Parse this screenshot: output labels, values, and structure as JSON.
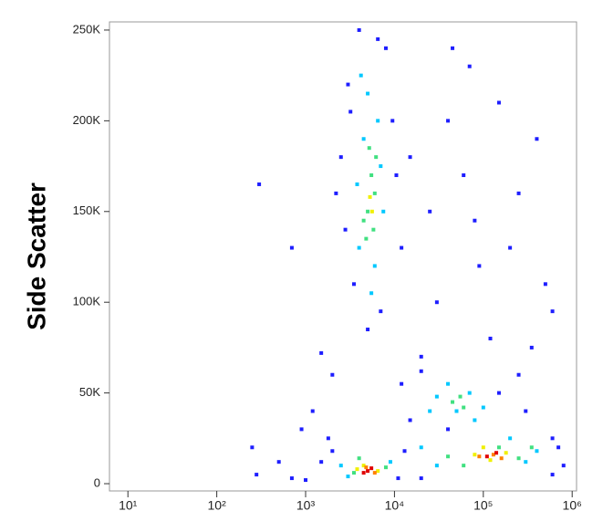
{
  "chart_data": {
    "type": "scatter",
    "ylabel": "Side Scatter",
    "xscale": "log",
    "xlim": [
      6.2,
      1120000
    ],
    "ylim": [
      -4000,
      254500
    ],
    "xticks": [
      {
        "value": 10,
        "label": "10¹"
      },
      {
        "value": 100,
        "label": "10²"
      },
      {
        "value": 1000,
        "label": "10³"
      },
      {
        "value": 10000,
        "label": "10⁴"
      },
      {
        "value": 100000,
        "label": "10⁵"
      },
      {
        "value": 1000000,
        "label": "10⁶"
      }
    ],
    "yticks": [
      0,
      {
        "value": 50000,
        "label": "50K"
      },
      {
        "value": 100000,
        "label": "100K"
      },
      {
        "value": 150000,
        "label": "150K"
      },
      {
        "value": 200000,
        "label": "200K"
      },
      {
        "value": 250000,
        "label": "250K"
      }
    ],
    "series": [
      {
        "color": "#1e1eff",
        "x": [
          3000,
          8000,
          2500,
          9500,
          3500,
          7000,
          2800,
          10500,
          4000,
          6500,
          5000,
          3200,
          12000,
          2200,
          15000,
          25000,
          40000,
          60000,
          90000,
          150000,
          250000,
          400000,
          30000,
          70000,
          120000,
          200000,
          500000,
          20000,
          45000,
          350000,
          600000,
          80000,
          300,
          700,
          1500,
          1200,
          900,
          2000,
          500,
          280,
          1800,
          250,
          12000,
          20000,
          150000,
          300000,
          15000,
          250000,
          40000,
          600000,
          1000,
          1500,
          700,
          11000,
          13000,
          700000,
          800000,
          600000,
          20000,
          2000
        ],
        "y": [
          220000,
          240000,
          180000,
          200000,
          110000,
          95000,
          140000,
          170000,
          250000,
          245000,
          85000,
          205000,
          130000,
          160000,
          180000,
          150000,
          200000,
          170000,
          120000,
          210000,
          160000,
          190000,
          100000,
          230000,
          80000,
          130000,
          110000,
          70000,
          240000,
          75000,
          95000,
          145000,
          165000,
          130000,
          72000,
          40000,
          30000,
          60000,
          12000,
          5000,
          25000,
          20000,
          55000,
          62000,
          50000,
          40000,
          35000,
          60000,
          30000,
          25000,
          2000,
          12000,
          3000,
          3000,
          18000,
          20000,
          10000,
          5000,
          3000,
          18000
        ]
      },
      {
        "color": "#00c8ff",
        "x": [
          4000,
          6000,
          4500,
          6500,
          3800,
          7500,
          5000,
          5500,
          4200,
          7000,
          30000,
          50000,
          70000,
          100000,
          40000,
          25000,
          80000,
          2500,
          9000,
          3000,
          200000,
          300000,
          30000,
          400000,
          20000
        ],
        "y": [
          130000,
          120000,
          190000,
          200000,
          165000,
          150000,
          215000,
          105000,
          225000,
          175000,
          48000,
          40000,
          50000,
          42000,
          55000,
          40000,
          35000,
          10000,
          12000,
          4000,
          25000,
          12000,
          10000,
          18000,
          20000
        ]
      },
      {
        "color": "#40e080",
        "x": [
          5000,
          5500,
          4800,
          6000,
          5200,
          4500,
          5800,
          6200,
          45000,
          55000,
          60000,
          3500,
          8000,
          4000,
          60000,
          150000,
          250000,
          40000,
          350000
        ],
        "y": [
          150000,
          170000,
          135000,
          160000,
          185000,
          145000,
          140000,
          180000,
          45000,
          48000,
          42000,
          6000,
          9000,
          14000,
          10000,
          20000,
          14000,
          15000,
          20000
        ]
      },
      {
        "color": "#f0f000",
        "x": [
          5300,
          5600,
          4500,
          6500,
          3800,
          80000,
          120000,
          180000,
          100000
        ],
        "y": [
          158000,
          150000,
          10000,
          7000,
          8000,
          16000,
          13000,
          17000,
          20000
        ]
      },
      {
        "color": "#ff8000",
        "x": [
          4800,
          6000,
          90000,
          130000,
          160000
        ],
        "y": [
          9000,
          6000,
          15000,
          16000,
          14000
        ]
      },
      {
        "color": "#e00000",
        "x": [
          5000,
          5500,
          4500,
          110000,
          140000
        ],
        "y": [
          7000,
          8500,
          6000,
          15000,
          17000
        ]
      }
    ]
  }
}
